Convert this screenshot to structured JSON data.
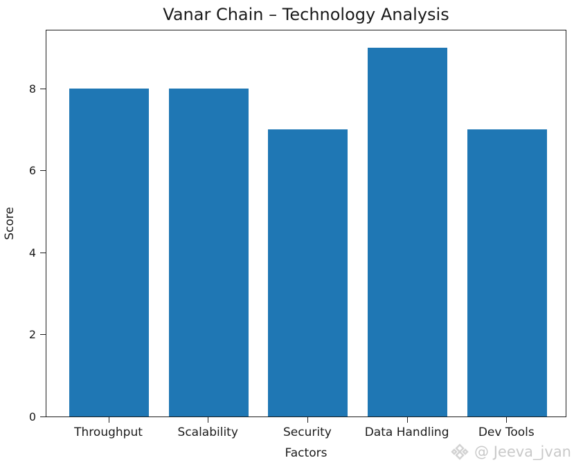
{
  "chart_data": {
    "type": "bar",
    "title": "Vanar Chain – Technology Analysis",
    "xlabel": "Factors",
    "ylabel": "Score",
    "categories": [
      "Throughput",
      "Scalability",
      "Security",
      "Data Handling",
      "Dev Tools"
    ],
    "values": [
      8,
      8,
      7,
      9,
      7
    ],
    "ylim": [
      0,
      9.45
    ],
    "yticks": [
      0,
      2,
      4,
      6,
      8
    ],
    "bar_color": "#1f77b4",
    "grid": false,
    "legend_position": "none"
  },
  "watermark": {
    "icon": "gem-diamond-icon",
    "text": "@ Jeeva_jvan",
    "color": "#c9c9c9"
  }
}
